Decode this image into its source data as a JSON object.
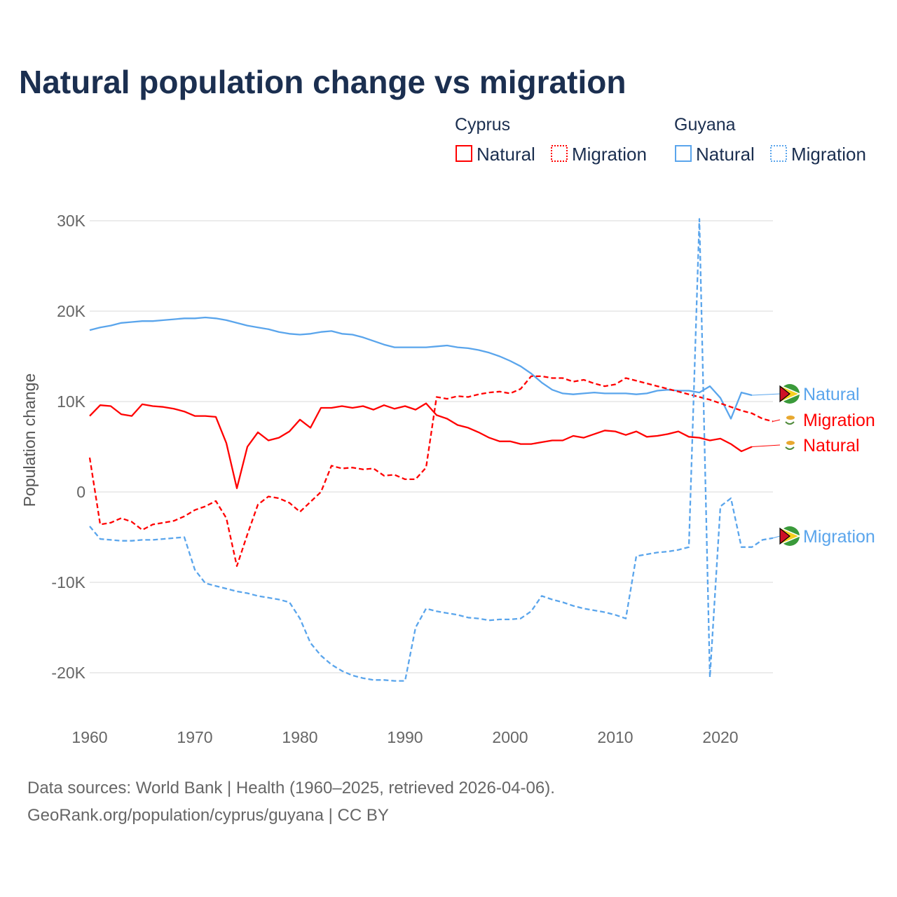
{
  "title": "Natural population change vs migration",
  "legend": {
    "groups": [
      {
        "country": "Cyprus",
        "items": [
          "Natural",
          "Migration"
        ],
        "color": "#ff0000"
      },
      {
        "country": "Guyana",
        "items": [
          "Natural",
          "Migration"
        ],
        "color": "#5aa5ec"
      }
    ]
  },
  "footer": {
    "line1": "Data sources: World Bank | Health (1960–2025, retrieved 2026-04-06).",
    "line2": "GeoRank.org/population/cyprus/guyana | CC BY"
  },
  "chart_data": {
    "type": "line",
    "title": "Natural population change vs migration",
    "xlabel": "",
    "ylabel": "Population change",
    "xlim": [
      1960,
      2025
    ],
    "ylim": [
      -20000,
      30000
    ],
    "x_ticks": [
      1960,
      1970,
      1980,
      1990,
      2000,
      2010,
      2020
    ],
    "y_ticks": [
      {
        "v": 30000,
        "label": "30K"
      },
      {
        "v": 20000,
        "label": "20K"
      },
      {
        "v": 10000,
        "label": "10K"
      },
      {
        "v": 0,
        "label": "0"
      },
      {
        "v": -10000,
        "label": "-10K"
      },
      {
        "v": -20000,
        "label": "-20K"
      }
    ],
    "grid": true,
    "legend_position": "top-right",
    "start_year": 1960,
    "series": [
      {
        "name": "Guyana Natural",
        "label": "Natural",
        "country": "Guyana",
        "color": "#5aa5ec",
        "dash": false,
        "values": [
          17.9,
          18.2,
          18.4,
          18.7,
          18.8,
          18.9,
          18.9,
          19.0,
          19.1,
          19.2,
          19.2,
          19.3,
          19.2,
          19.0,
          18.7,
          18.4,
          18.2,
          18.0,
          17.7,
          17.5,
          17.4,
          17.5,
          17.7,
          17.8,
          17.5,
          17.4,
          17.1,
          16.7,
          16.3,
          16.0,
          16.0,
          16.0,
          16.0,
          16.1,
          16.2,
          16.0,
          15.9,
          15.7,
          15.4,
          15.0,
          14.5,
          13.9,
          13.1,
          12.1,
          11.3,
          10.9,
          10.8,
          10.9,
          11.0,
          10.9,
          10.9,
          10.9,
          10.8,
          10.9,
          11.2,
          11.3,
          11.2,
          11.2,
          11.0,
          11.7,
          10.4,
          8.1,
          11.0,
          10.7
        ]
      },
      {
        "name": "Cyprus Migration",
        "label": "Migration",
        "country": "Cyprus",
        "color": "#ff0000",
        "dash": true,
        "values": [
          3.8,
          -3.6,
          -3.4,
          -2.9,
          -3.3,
          -4.2,
          -3.6,
          -3.4,
          -3.2,
          -2.7,
          -2.0,
          -1.6,
          -1.0,
          -2.9,
          -8.2,
          -4.7,
          -1.4,
          -0.5,
          -0.7,
          -1.2,
          -2.2,
          -1.1,
          0.0,
          2.9,
          2.6,
          2.7,
          2.5,
          2.6,
          1.8,
          1.9,
          1.4,
          1.4,
          2.7,
          10.5,
          10.3,
          10.6,
          10.5,
          10.8,
          11.0,
          11.1,
          10.9,
          11.4,
          12.8,
          12.8,
          12.6,
          12.6,
          12.2,
          12.4,
          12.0,
          11.7,
          11.9,
          12.6,
          12.3,
          12.0,
          11.7,
          11.4,
          11.1,
          10.8,
          10.5,
          10.2,
          9.8,
          9.4,
          9.0,
          8.7,
          8.1,
          7.8
        ]
      },
      {
        "name": "Cyprus Natural",
        "label": "Natural",
        "country": "Cyprus",
        "color": "#ff0000",
        "dash": false,
        "values": [
          8.4,
          9.6,
          9.5,
          8.6,
          8.4,
          9.7,
          9.5,
          9.4,
          9.2,
          8.9,
          8.4,
          8.4,
          8.3,
          5.4,
          0.4,
          5.0,
          6.6,
          5.7,
          6.0,
          6.7,
          8.0,
          7.1,
          9.3,
          9.3,
          9.5,
          9.3,
          9.5,
          9.1,
          9.6,
          9.2,
          9.5,
          9.1,
          9.8,
          8.5,
          8.1,
          7.4,
          7.1,
          6.6,
          6.0,
          5.6,
          5.6,
          5.3,
          5.3,
          5.5,
          5.7,
          5.7,
          6.2,
          6.0,
          6.4,
          6.8,
          6.7,
          6.3,
          6.7,
          6.1,
          6.2,
          6.4,
          6.7,
          6.1,
          6.0,
          5.7,
          5.9,
          5.3,
          4.5,
          5.0
        ]
      },
      {
        "name": "Guyana Migration",
        "label": "Migration",
        "country": "Guyana",
        "color": "#5aa5ec",
        "dash": true,
        "values": [
          -3.8,
          -5.2,
          -5.3,
          -5.4,
          -5.4,
          -5.3,
          -5.3,
          -5.2,
          -5.1,
          -5.0,
          -8.6,
          -10.1,
          -10.4,
          -10.7,
          -11.0,
          -11.2,
          -11.5,
          -11.7,
          -11.9,
          -12.2,
          -14.0,
          -16.7,
          -18.1,
          -19.1,
          -19.8,
          -20.3,
          -20.6,
          -20.8,
          -20.8,
          -20.9,
          -20.9,
          -15.0,
          -12.9,
          -13.2,
          -13.4,
          -13.6,
          -13.9,
          -14.0,
          -14.2,
          -14.1,
          -14.1,
          -14.0,
          -13.2,
          -11.5,
          -11.9,
          -12.2,
          -12.6,
          -12.9,
          -13.1,
          -13.3,
          -13.6,
          -14.0,
          -7.1,
          -6.9,
          -6.7,
          -6.6,
          -6.4,
          -6.1,
          30.2,
          -20.5,
          -1.6,
          -0.7,
          -6.1,
          -6.1,
          -5.3,
          -5.1
        ]
      }
    ],
    "value_unit": "thousands"
  }
}
